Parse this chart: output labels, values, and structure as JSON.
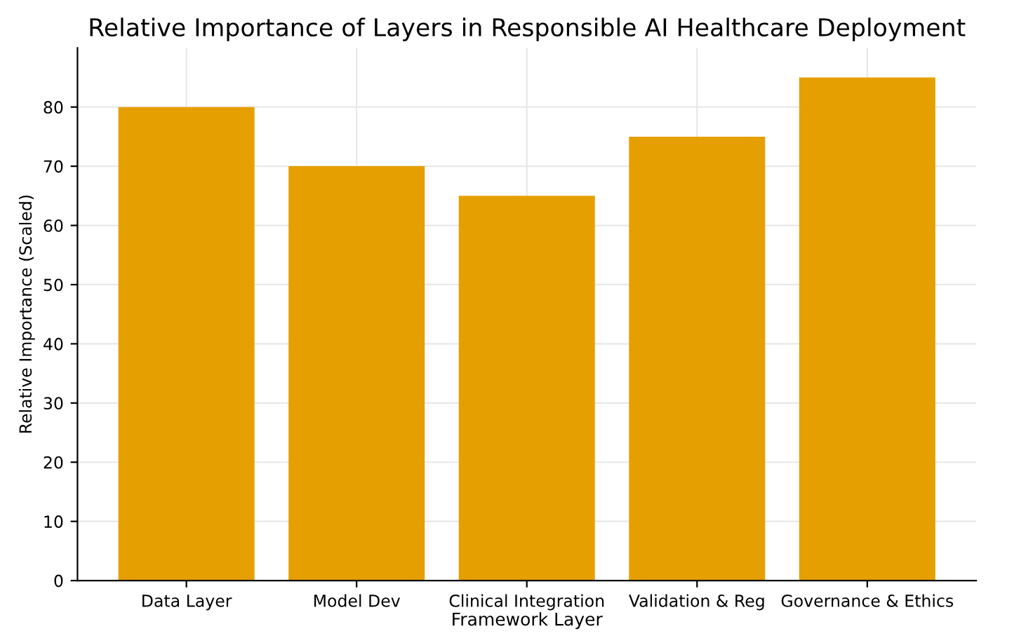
{
  "chart_data": {
    "type": "bar",
    "title": "Relative Importance of Layers in Responsible AI Healthcare Deployment",
    "xlabel": "Framework Layer",
    "ylabel": "Relative Importance (Scaled)",
    "categories": [
      "Data Layer",
      "Model Dev",
      "Clinical Integration",
      "Validation & Reg",
      "Governance & Ethics"
    ],
    "values": [
      80,
      70,
      65,
      75,
      85
    ],
    "color": "#e69f00",
    "ylim": [
      0,
      90
    ],
    "yticks": [
      0,
      10,
      20,
      30,
      40,
      50,
      60,
      70,
      80
    ],
    "grid": true
  }
}
